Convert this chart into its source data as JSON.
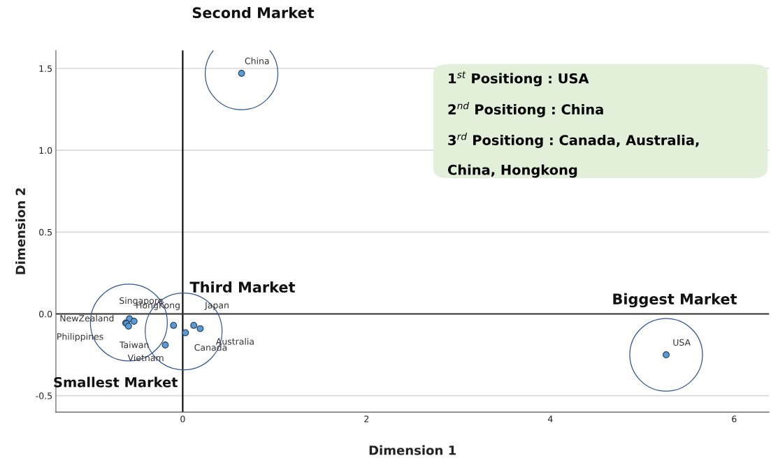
{
  "chart_data": {
    "type": "scatter",
    "xlabel": "Dimension 1",
    "ylabel": "Dimension 2",
    "xlim": [
      -1.38,
      6.38
    ],
    "ylim": [
      -0.6,
      1.61
    ],
    "xticks": [
      0,
      2,
      4,
      6
    ],
    "yticks": [
      {
        "value": -0.5,
        "label": "-0.5"
      },
      {
        "value": 0,
        "label": "0.0"
      },
      {
        "value": 0.5,
        "label": "0.5"
      },
      {
        "value": 1.0,
        "label": "1.0"
      },
      {
        "value": 1.5,
        "label": "1.5"
      }
    ],
    "grid": "y",
    "marker": "circle",
    "series": [
      {
        "color": "#5b9bd5",
        "x": [
          0.64,
          5.26,
          -0.58,
          -0.62,
          -0.61,
          -0.59,
          -0.53,
          -0.1,
          0.12,
          0.19,
          0.03,
          -0.19
        ],
        "values": [
          1.47,
          -0.25,
          -0.03,
          -0.055,
          -0.06,
          -0.075,
          -0.045,
          -0.07,
          -0.07,
          -0.09,
          -0.115,
          -0.19
        ]
      }
    ],
    "ref_lines": [
      {
        "axis": "x",
        "value": 0,
        "color": "#000000"
      },
      {
        "axis": "y",
        "value": 0,
        "color": "#333333"
      }
    ],
    "annotations": [
      {
        "text": "China",
        "x": 0.64,
        "y": 1.47
      },
      {
        "text": "USA",
        "x": 5.26,
        "y": -0.25
      },
      {
        "text": "Singapore",
        "x": -0.58,
        "y": -0.03
      },
      {
        "text": "NewZealand",
        "x": -0.62,
        "y": -0.055
      },
      {
        "text": "Philippines",
        "x": -0.61,
        "y": -0.06
      },
      {
        "text": "Taiwan",
        "x": -0.59,
        "y": -0.075
      },
      {
        "text": "Vietnam",
        "x": -0.19,
        "y": -0.19
      },
      {
        "text": "HongKong",
        "x": -0.1,
        "y": -0.07
      },
      {
        "text": "Japan",
        "x": 0.12,
        "y": -0.07
      },
      {
        "text": "Australia",
        "x": 0.19,
        "y": -0.09
      },
      {
        "text": "Canada",
        "x": 0.03,
        "y": -0.115
      },
      "Second Market",
      "Third Market",
      "Smallest Market",
      "Biggest Market",
      "1$^{st}$ Positiong : USA",
      "2$^{nd}$ Positiong : China",
      "3$^{rd}$ Positiong : Canada, Australia,",
      "China, Hongkong"
    ]
  }
}
